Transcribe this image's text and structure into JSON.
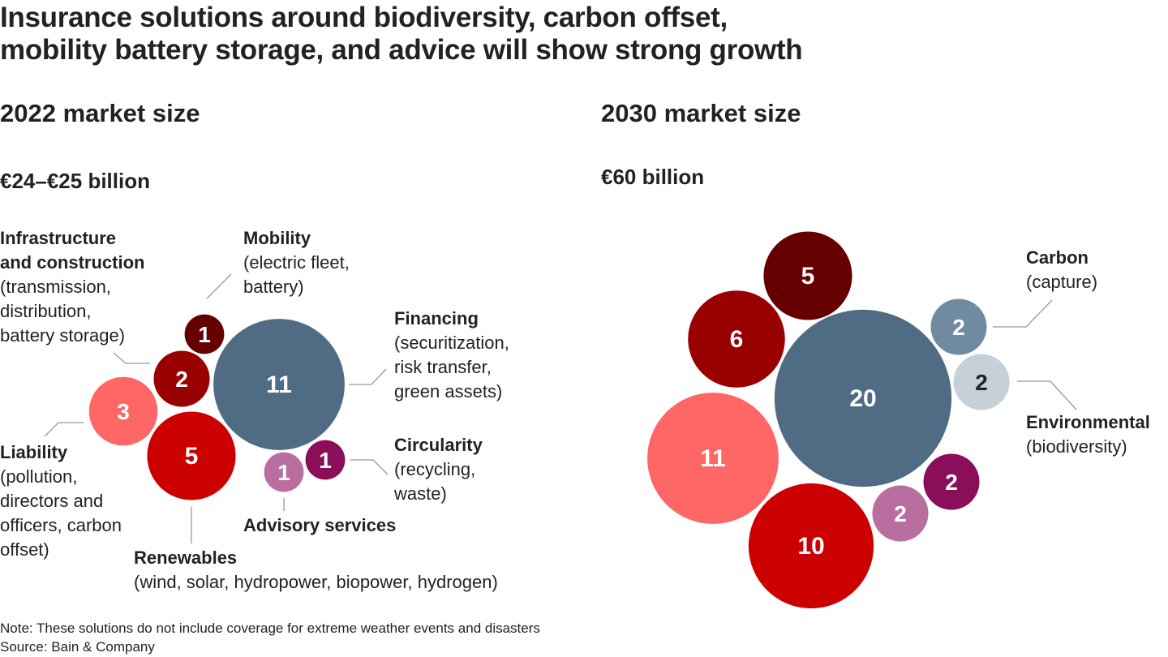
{
  "title_line1": "Insurance solutions around biodiversity, carbon offset,",
  "title_line2": "mobility battery storage, and advice will show strong growth",
  "chart_data": [
    {
      "type": "bubble",
      "title": "2022 market size",
      "subtitle": "€24–€25 billion",
      "bubbles": [
        {
          "category": "Mobility",
          "value": 1,
          "color": "#660000",
          "label_color": "#ffffff"
        },
        {
          "category": "Infrastructure and construction",
          "value": 2,
          "color": "#990000",
          "label_color": "#ffffff"
        },
        {
          "category": "Liability",
          "value": 3,
          "color": "#FF6666",
          "label_color": "#ffffff"
        },
        {
          "category": "Renewables",
          "value": 5,
          "color": "#CC0000",
          "label_color": "#ffffff"
        },
        {
          "category": "Financing",
          "value": 11,
          "color": "#506C85",
          "label_color": "#ffffff"
        },
        {
          "category": "Advisory services",
          "value": 1,
          "color": "#B86E9E",
          "label_color": "#ffffff"
        },
        {
          "category": "Circularity",
          "value": 1,
          "color": "#8A0E5A",
          "label_color": "#ffffff"
        }
      ]
    },
    {
      "type": "bubble",
      "title": "2030 market size",
      "subtitle": "€60 billion",
      "bubbles": [
        {
          "category": "Mobility",
          "value": 5,
          "color": "#660000",
          "label_color": "#ffffff"
        },
        {
          "category": "Infrastructure and construction",
          "value": 6,
          "color": "#990000",
          "label_color": "#ffffff"
        },
        {
          "category": "Liability",
          "value": 11,
          "color": "#FF6666",
          "label_color": "#ffffff"
        },
        {
          "category": "Renewables",
          "value": 10,
          "color": "#CC0000",
          "label_color": "#ffffff"
        },
        {
          "category": "Financing",
          "value": 20,
          "color": "#506C85",
          "label_color": "#ffffff"
        },
        {
          "category": "Advisory services",
          "value": 2,
          "color": "#B86E9E",
          "label_color": "#ffffff"
        },
        {
          "category": "Circularity",
          "value": 2,
          "color": "#8A0E5A",
          "label_color": "#ffffff"
        },
        {
          "category": "Carbon",
          "value": 2,
          "color": "#708BA0",
          "label_color": "#ffffff"
        },
        {
          "category": "Environmental",
          "value": 2,
          "color": "#C5D0D9",
          "label_color": "#222222"
        }
      ]
    }
  ],
  "labels": {
    "infra": {
      "name": "Infrastructure",
      "name2": "and construction",
      "desc": [
        "(transmission,",
        "distribution,",
        "battery storage)"
      ]
    },
    "mobility": {
      "name": "Mobility",
      "desc": [
        "(electric fleet,",
        "battery)"
      ]
    },
    "financing": {
      "name": "Financing",
      "desc": [
        "(securitization,",
        "risk transfer,",
        "green assets)"
      ]
    },
    "circularity": {
      "name": "Circularity",
      "desc": [
        "(recycling,",
        "waste)"
      ]
    },
    "liability": {
      "name": "Liability",
      "desc": [
        "(pollution,",
        "directors and",
        "officers, carbon",
        "offset)"
      ]
    },
    "advisory": {
      "name": "Advisory services"
    },
    "renewables": {
      "name": "Renewables",
      "desc": [
        "(wind, solar, hydropower, biopower, hydrogen)"
      ]
    },
    "carbon": {
      "name": "Carbon",
      "desc": [
        "(capture)"
      ]
    },
    "environmental": {
      "name": "Environmental",
      "desc": [
        "(biodiversity)"
      ]
    }
  },
  "note": "Note: These solutions do not include coverage for extreme weather events and disasters",
  "source": "Source: Bain & Company"
}
